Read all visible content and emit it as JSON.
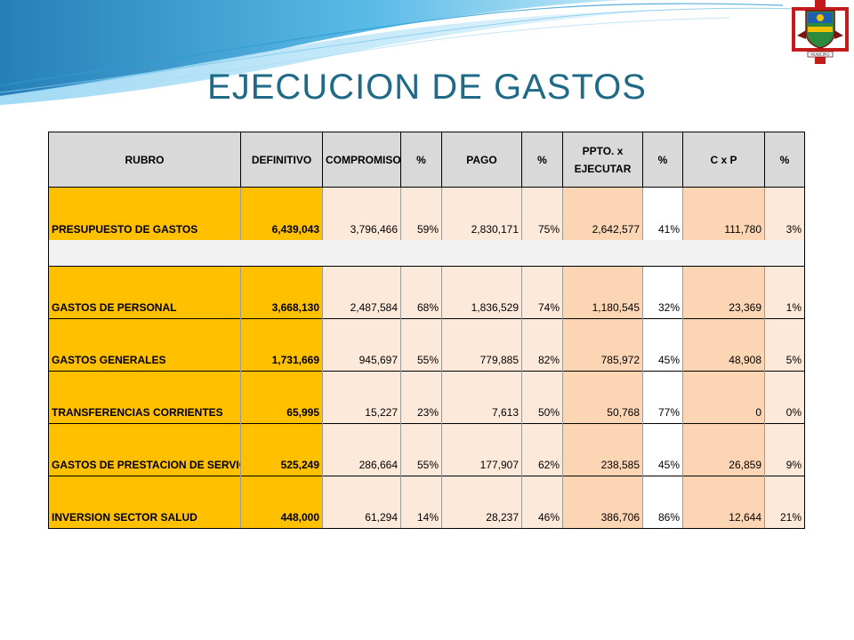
{
  "slide": {
    "title": "EJECUCION DE GASTOS"
  },
  "colors": {
    "title": "#1f6a86",
    "header_bg": "#d9d9d9",
    "rubro_bg": "#ffc000",
    "pale_cell": "#fde9d9",
    "peach_cell": "#fcd5b4",
    "swoosh": "#2e9bd1"
  },
  "logo": {
    "icon": "coat-of-arms-icon",
    "caption": "MUNICIPIO"
  },
  "table": {
    "headers": [
      "RUBRO",
      "DEFINITIVO",
      "COMPROMISO",
      "%",
      "PAGO",
      "%",
      "PPTO. x EJECUTAR",
      "%",
      "C x P",
      "%"
    ],
    "summary": {
      "rubro": "PRESUPUESTO DE GASTOS",
      "definitivo": "6,439,043",
      "compromiso": "3,796,466",
      "pct_compromiso": "59%",
      "pago": "2,830,171",
      "pct_pago": "75%",
      "ppto_x_ejecutar": "2,642,577",
      "pct_ppto": "41%",
      "cxp": "111,780",
      "pct_cxp": "3%"
    },
    "rows": [
      {
        "rubro": "GASTOS DE PERSONAL",
        "definitivo": "3,668,130",
        "compromiso": "2,487,584",
        "pct_compromiso": "68%",
        "pago": "1,836,529",
        "pct_pago": "74%",
        "ppto_x_ejecutar": "1,180,545",
        "pct_ppto": "32%",
        "cxp": "23,369",
        "pct_cxp": "1%"
      },
      {
        "rubro": "GASTOS GENERALES",
        "definitivo": "1,731,669",
        "compromiso": "945,697",
        "pct_compromiso": "55%",
        "pago": "779,885",
        "pct_pago": "82%",
        "ppto_x_ejecutar": "785,972",
        "pct_ppto": "45%",
        "cxp": "48,908",
        "pct_cxp": "5%"
      },
      {
        "rubro": "TRANSFERENCIAS CORRIENTES",
        "definitivo": "65,995",
        "compromiso": "15,227",
        "pct_compromiso": "23%",
        "pago": "7,613",
        "pct_pago": "50%",
        "ppto_x_ejecutar": "50,768",
        "pct_ppto": "77%",
        "cxp": "0",
        "pct_cxp": "0%"
      },
      {
        "rubro": "GASTOS DE PRESTACION DE SERVICIOS",
        "definitivo": "525,249",
        "compromiso": "286,664",
        "pct_compromiso": "55%",
        "pago": "177,907",
        "pct_pago": "62%",
        "ppto_x_ejecutar": "238,585",
        "pct_ppto": "45%",
        "cxp": "26,859",
        "pct_cxp": "9%"
      },
      {
        "rubro": "INVERSION SECTOR SALUD",
        "definitivo": "448,000",
        "compromiso": "61,294",
        "pct_compromiso": "14%",
        "pago": "28,237",
        "pct_pago": "46%",
        "ppto_x_ejecutar": "386,706",
        "pct_ppto": "86%",
        "cxp": "12,644",
        "pct_cxp": "21%"
      }
    ]
  }
}
